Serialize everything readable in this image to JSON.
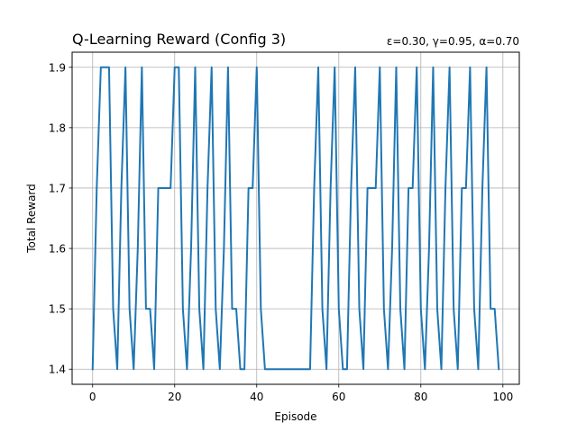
{
  "chart_data": {
    "type": "line",
    "title": "Q-Learning Reward (Config 3)",
    "subtitle": "ε=0.30, γ=0.95, α=0.70",
    "xlabel": "Episode",
    "ylabel": "Total Reward",
    "xlim": [
      -5,
      104
    ],
    "ylim": [
      1.375,
      1.925
    ],
    "xticks": [
      0,
      20,
      40,
      60,
      80,
      100
    ],
    "yticks": [
      1.4,
      1.5,
      1.6,
      1.7,
      1.8,
      1.9
    ],
    "ytick_labels": [
      "1.4",
      "1.5",
      "1.6",
      "1.7",
      "1.8",
      "1.9"
    ],
    "grid": true,
    "series": [
      {
        "color": "#1f77b4",
        "x": [
          0,
          1,
          2,
          3,
          4,
          5,
          6,
          7,
          8,
          9,
          10,
          11,
          12,
          13,
          14,
          15,
          16,
          17,
          18,
          19,
          20,
          21,
          22,
          23,
          24,
          25,
          26,
          27,
          28,
          29,
          30,
          31,
          32,
          33,
          34,
          35,
          36,
          37,
          38,
          39,
          40,
          41,
          42,
          43,
          44,
          45,
          46,
          47,
          48,
          49,
          50,
          51,
          52,
          53,
          54,
          55,
          56,
          57,
          58,
          59,
          60,
          61,
          62,
          63,
          64,
          65,
          66,
          67,
          68,
          69,
          70,
          71,
          72,
          73,
          74,
          75,
          76,
          77,
          78,
          79,
          80,
          81,
          82,
          83,
          84,
          85,
          86,
          87,
          88,
          89,
          90,
          91,
          92,
          93,
          94,
          95,
          96,
          97,
          98,
          99
        ],
        "y": [
          1.4,
          1.7,
          1.9,
          1.9,
          1.9,
          1.5,
          1.4,
          1.7,
          1.9,
          1.5,
          1.4,
          1.6,
          1.9,
          1.5,
          1.5,
          1.4,
          1.7,
          1.7,
          1.7,
          1.7,
          1.9,
          1.9,
          1.5,
          1.4,
          1.6,
          1.9,
          1.5,
          1.4,
          1.7,
          1.9,
          1.5,
          1.4,
          1.6,
          1.9,
          1.5,
          1.5,
          1.4,
          1.4,
          1.7,
          1.7,
          1.9,
          1.5,
          1.4,
          1.4,
          1.4,
          1.4,
          1.4,
          1.4,
          1.4,
          1.4,
          1.4,
          1.4,
          1.4,
          1.4,
          1.7,
          1.9,
          1.5,
          1.4,
          1.7,
          1.9,
          1.5,
          1.4,
          1.4,
          1.7,
          1.9,
          1.5,
          1.4,
          1.7,
          1.7,
          1.7,
          1.9,
          1.5,
          1.4,
          1.6,
          1.9,
          1.5,
          1.4,
          1.7,
          1.7,
          1.9,
          1.5,
          1.4,
          1.6,
          1.9,
          1.5,
          1.4,
          1.7,
          1.9,
          1.5,
          1.4,
          1.7,
          1.7,
          1.9,
          1.5,
          1.4,
          1.7,
          1.9,
          1.5,
          1.5,
          1.4
        ]
      }
    ]
  }
}
